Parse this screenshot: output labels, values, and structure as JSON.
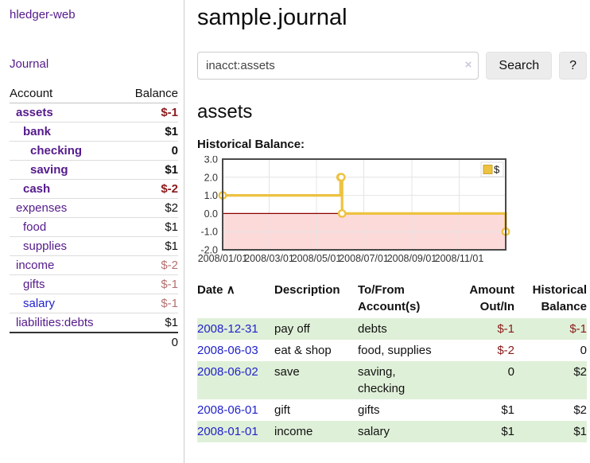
{
  "colors": {
    "accent_purple": "#551a8b",
    "link_blue": "#2222cc",
    "negative_dark": "#8b1a1a",
    "negative_light": "#b57070",
    "row_stripe_green": "#dff0d8",
    "chart_line_gold": "#edc240",
    "chart_negative_fill": "#fcdada",
    "chart_zero_line": "#8b0000"
  },
  "sidebar": {
    "app_title": "hledger-web",
    "journal_label": "Journal",
    "table": {
      "account_header": "Account",
      "balance_header": "Balance",
      "accounts": [
        {
          "name": "assets",
          "depth": 1,
          "bold": true,
          "balance": "$-1",
          "neg": "dark"
        },
        {
          "name": "bank",
          "depth": 2,
          "bold": true,
          "balance": "$1",
          "neg": "no"
        },
        {
          "name": "checking",
          "depth": 3,
          "bold": true,
          "balance": "0",
          "neg": "no"
        },
        {
          "name": "saving",
          "depth": 3,
          "bold": true,
          "balance": "$1",
          "neg": "no"
        },
        {
          "name": "cash",
          "depth": 2,
          "bold": true,
          "balance": "$-2",
          "neg": "dark"
        },
        {
          "name": "expenses",
          "depth": 1,
          "bold": false,
          "balance": "$2",
          "neg": "no"
        },
        {
          "name": "food",
          "depth": 2,
          "bold": false,
          "balance": "$1",
          "neg": "no"
        },
        {
          "name": "supplies",
          "depth": 2,
          "bold": false,
          "balance": "$1",
          "neg": "no"
        },
        {
          "name": "income",
          "depth": 1,
          "bold": false,
          "balance": "$-2",
          "neg": "light"
        },
        {
          "name": "gifts",
          "depth": 2,
          "bold": false,
          "balance": "$-1",
          "neg": "light"
        },
        {
          "name": "salary",
          "depth": 2,
          "bold": false,
          "balance": "$-1",
          "neg": "light",
          "blue": true
        },
        {
          "name": "liabilities:debts",
          "depth": 1,
          "bold": false,
          "balance": "$1",
          "neg": "no"
        }
      ],
      "total": "0"
    }
  },
  "main": {
    "title": "sample.journal",
    "search": {
      "value": "inacct:assets",
      "clear_label": "×",
      "button_label": "Search",
      "help_label": "?"
    },
    "account_heading": "assets",
    "chart_heading": "Historical Balance:",
    "register": {
      "headers": {
        "date": "Date",
        "sort_indicator": "∧",
        "description": "Description",
        "accounts": "To/From Account(s)",
        "amount": "Amount Out/In",
        "balance": "Historical Balance"
      },
      "rows": [
        {
          "date": "2008-12-31",
          "description": "pay off",
          "accounts": "debts",
          "amount": "$-1",
          "amount_neg": true,
          "balance": "$-1",
          "balance_neg": true,
          "stripe": true
        },
        {
          "date": "2008-06-03",
          "description": "eat & shop",
          "accounts": "food, supplies",
          "amount": "$-2",
          "amount_neg": true,
          "balance": "0",
          "balance_neg": false,
          "stripe": false
        },
        {
          "date": "2008-06-02",
          "description": "save",
          "accounts": "saving, checking",
          "amount": "0",
          "amount_neg": false,
          "balance": "$2",
          "balance_neg": false,
          "stripe": true
        },
        {
          "date": "2008-06-01",
          "description": "gift",
          "accounts": "gifts",
          "amount": "$1",
          "amount_neg": false,
          "balance": "$2",
          "balance_neg": false,
          "stripe": false
        },
        {
          "date": "2008-01-01",
          "description": "income",
          "accounts": "salary",
          "amount": "$1",
          "amount_neg": false,
          "balance": "$1",
          "balance_neg": false,
          "stripe": true
        }
      ]
    }
  },
  "chart_data": {
    "type": "line",
    "title": "Historical Balance",
    "step": true,
    "series": [
      {
        "name": "$",
        "color": "#edc240",
        "points": [
          [
            "2008-01-01",
            1
          ],
          [
            "2008-06-01",
            2
          ],
          [
            "2008-06-02",
            2
          ],
          [
            "2008-06-03",
            0
          ],
          [
            "2008-12-31",
            -1
          ]
        ]
      }
    ],
    "x_range": [
      "2008-01-01",
      "2008-12-31"
    ],
    "ylim": [
      -2,
      3
    ],
    "y_ticks": [
      3.0,
      2.0,
      1.0,
      0.0,
      -1.0,
      -2.0
    ],
    "x_ticks": [
      "2008/01/01",
      "2008/03/01",
      "2008/05/01",
      "2008/07/01",
      "2008/09/01",
      "2008/11/01"
    ],
    "legend": {
      "label": "$",
      "position": "top-right"
    },
    "grid": true,
    "negative_fill": "#fcdada",
    "zero_line_color": "#8b0000"
  }
}
